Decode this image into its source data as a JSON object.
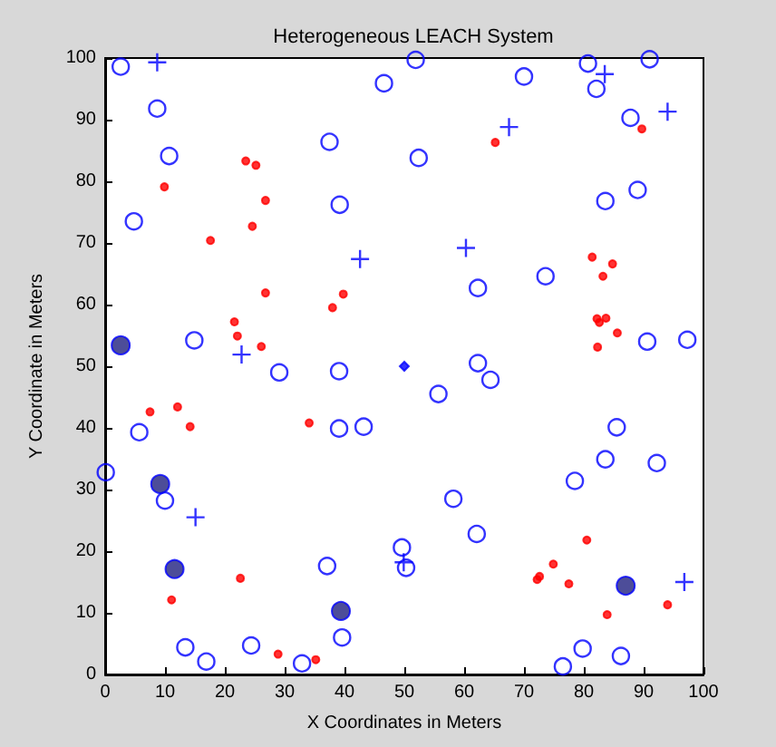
{
  "chart_data": {
    "type": "scatter",
    "title": "Heterogeneous LEACH System",
    "xlabel": "X Coordinates in Meters",
    "ylabel": "Y Coordinate in Meters",
    "xlim": [
      0,
      100
    ],
    "ylim": [
      0,
      100
    ],
    "xticks": [
      0,
      10,
      20,
      30,
      40,
      50,
      60,
      70,
      80,
      90,
      100
    ],
    "yticks": [
      0,
      10,
      20,
      30,
      40,
      50,
      60,
      70,
      80,
      90,
      100
    ],
    "grid": false,
    "series": [
      {
        "color": "#0000ff",
        "marker": "circle",
        "x": [
          2.6,
          46.6,
          8.7,
          37.5,
          10.7,
          39.2,
          4.8,
          14.9,
          51.9,
          70,
          80.7,
          82.1,
          91,
          87.8,
          52.4,
          89,
          83.6,
          73.6,
          62.3,
          90.6,
          97.3,
          62.3,
          29.1,
          39.1,
          5.7,
          39.1,
          43.2,
          0.1,
          10,
          49.6,
          50.3,
          37.1,
          39.6,
          13.4,
          24.4,
          16.9,
          32.9,
          64.4,
          55.7,
          85.5,
          83.6,
          92.2,
          78.5,
          58.2,
          62.1,
          79.8,
          86.2,
          76.5
        ],
        "values": [
          98.6,
          95.9,
          91.8,
          86.4,
          84.1,
          76.2,
          73.5,
          54.2,
          99.7,
          97,
          99.1,
          95,
          99.8,
          90.3,
          83.8,
          78.6,
          76.8,
          64.6,
          62.7,
          54,
          54.3,
          50.5,
          49,
          49.2,
          39.3,
          39.9,
          40.2,
          32.8,
          28.2,
          20.6,
          17.3,
          17.6,
          6,
          4.4,
          4.7,
          2.1,
          1.8,
          47.8,
          45.5,
          40.1,
          34.9,
          34.3,
          31.4,
          28.5,
          22.8,
          4.2,
          3,
          1.3
        ]
      },
      {
        "color": "#ff0000",
        "marker": "circle",
        "x": [
          23.5,
          25.2,
          9.9,
          26.8,
          24.6,
          17.6,
          26.8,
          39.8,
          38,
          21.6,
          22.1,
          26.1,
          89.7,
          65.2,
          81.4,
          84.8,
          83.2,
          82.2,
          83.7,
          82.6,
          85.6,
          82.3,
          7.5,
          12.1,
          14.2,
          34.1,
          22.6,
          11.1,
          28.9,
          35.2,
          80.5,
          74.9,
          72.6,
          72.2,
          77.5,
          94,
          83.9
        ],
        "values": [
          83.3,
          82.6,
          79.1,
          76.9,
          72.7,
          70.4,
          61.9,
          61.7,
          59.5,
          57.2,
          54.9,
          53.2,
          88.5,
          86.3,
          67.7,
          66.6,
          64.6,
          57.7,
          57.8,
          57.1,
          55.4,
          53.1,
          42.6,
          43.4,
          40.2,
          40.8,
          15.6,
          12.1,
          3.3,
          2.4,
          21.8,
          17.9,
          15.9,
          15.4,
          14.7,
          11.3,
          9.7
        ]
      },
      {
        "color": "#0000ff",
        "marker": "cross",
        "x": [
          8.7,
          42.6,
          22.8,
          83.5,
          94,
          67.5,
          60.3,
          15.1,
          49.9,
          96.8
        ],
        "values": [
          99.3,
          67.4,
          51.9,
          97.4,
          91.3,
          88.8,
          69.2,
          25.5,
          18.2,
          15
        ]
      },
      {
        "color": "#202080",
        "marker": "circle",
        "x": [
          2.6,
          9.2,
          11.6,
          39.4,
          87
        ],
        "values": [
          53.4,
          30.9,
          17.1,
          10.3,
          14.4
        ]
      },
      {
        "color": "#0000ff",
        "marker": "diamond",
        "x": [
          50
        ],
        "values": [
          50
        ]
      }
    ]
  }
}
